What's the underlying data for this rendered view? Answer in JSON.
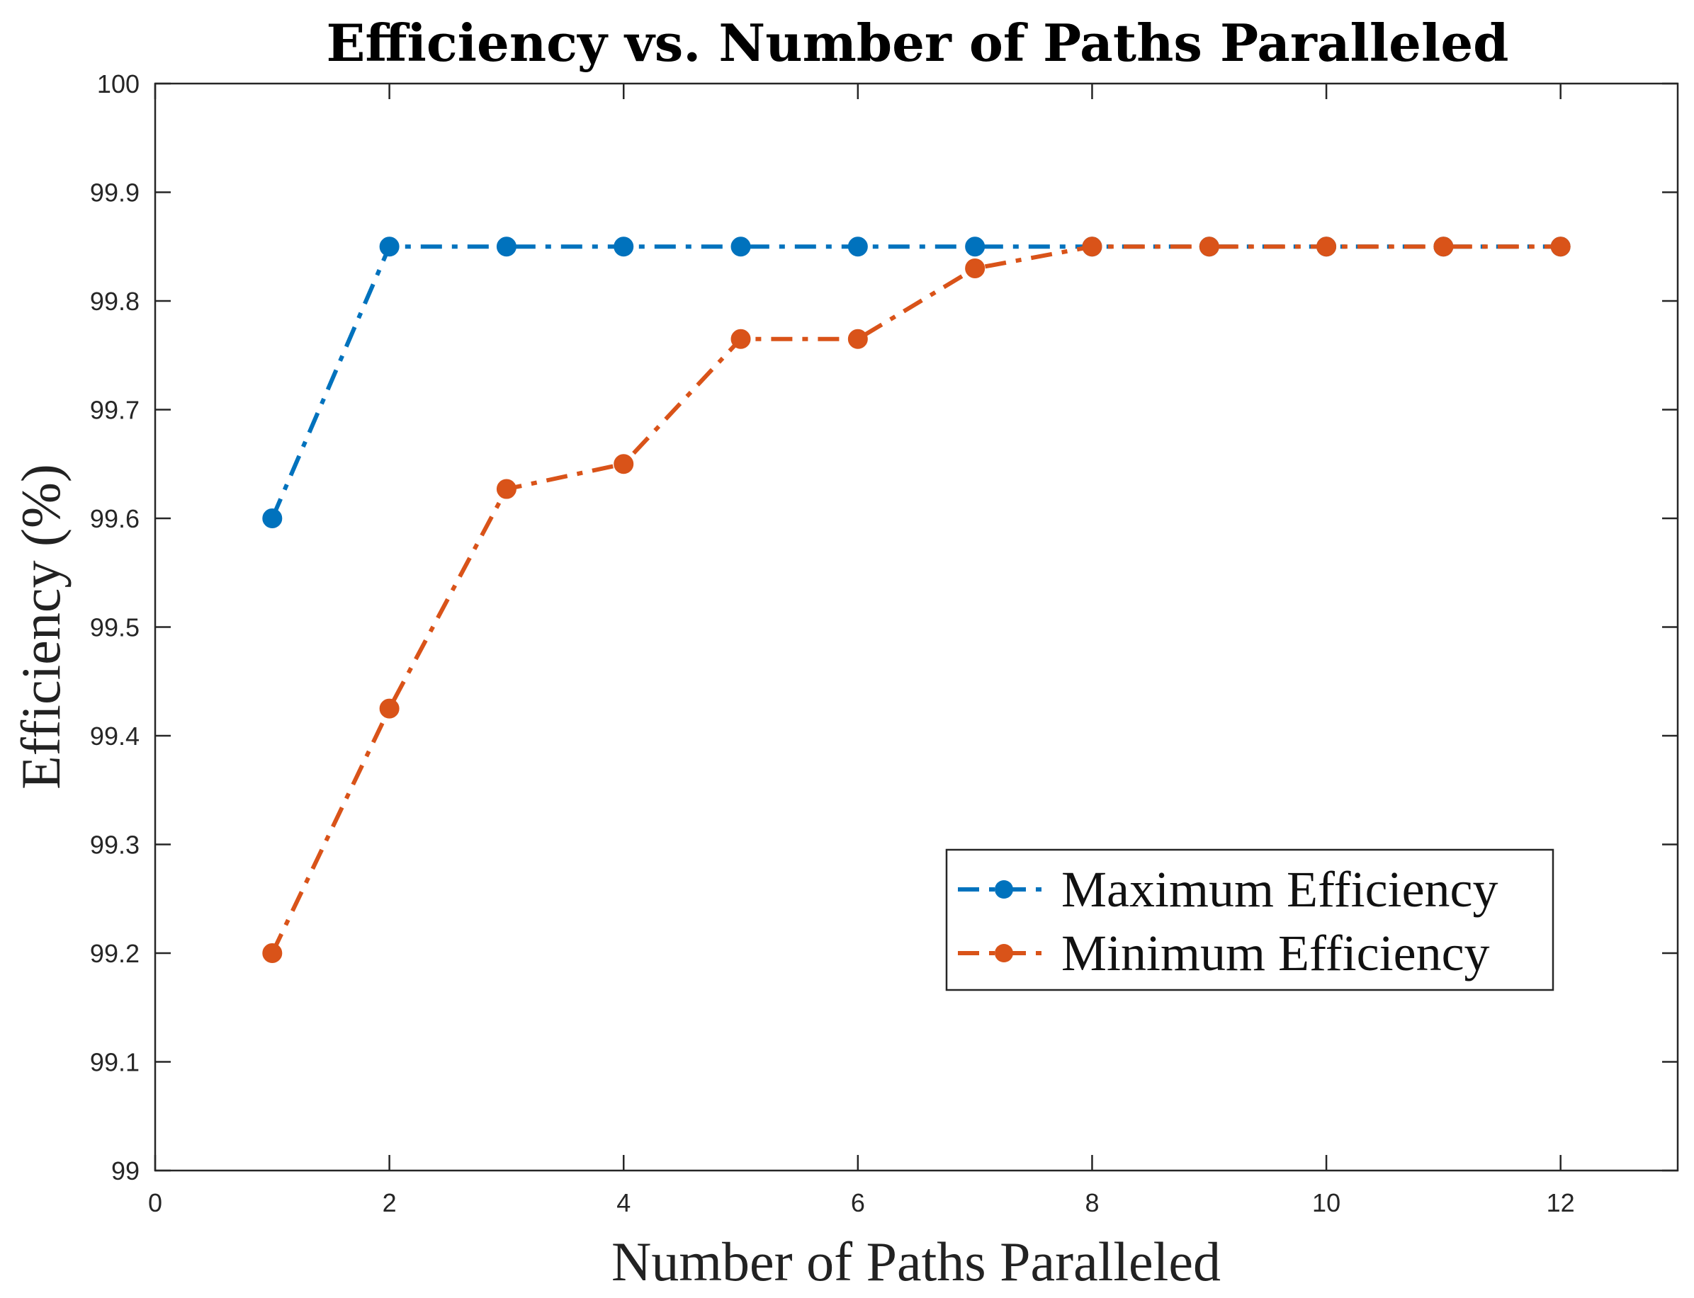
{
  "chart_data": {
    "type": "line",
    "title": "Efficiency vs. Number of Paths Paralleled",
    "xlabel": "Number of Paths Paralleled",
    "ylabel": "Efficiency (%)",
    "xlim": [
      0,
      13
    ],
    "ylim": [
      99,
      100
    ],
    "xticks": [
      0,
      2,
      4,
      6,
      8,
      10,
      12
    ],
    "xtick_labels": [
      "0",
      "2",
      "4",
      "6",
      "8",
      "10",
      "12"
    ],
    "yticks": [
      99,
      99.1,
      99.2,
      99.3,
      99.4,
      99.5,
      99.6,
      99.7,
      99.8,
      99.9,
      100
    ],
    "ytick_labels": [
      "99",
      "99.1",
      "99.2",
      "99.3",
      "99.4",
      "99.5",
      "99.6",
      "99.7",
      "99.8",
      "99.9",
      "100"
    ],
    "grid": false,
    "legend_position": "bottom-right",
    "series": [
      {
        "name": "Maximum Efficiency",
        "color": "#0072BD",
        "line_style": "dash-dot",
        "marker": "circle",
        "x": [
          1,
          2,
          3,
          4,
          5,
          6,
          7,
          8,
          9,
          10,
          11,
          12
        ],
        "y": [
          99.6,
          99.85,
          99.85,
          99.85,
          99.85,
          99.85,
          99.85,
          99.85,
          99.85,
          99.85,
          99.85,
          99.85
        ]
      },
      {
        "name": "Minimum Efficiency",
        "color": "#D95319",
        "line_style": "dash-dot",
        "marker": "circle",
        "x": [
          1,
          2,
          3,
          4,
          5,
          6,
          7,
          8,
          9,
          10,
          11,
          12
        ],
        "y": [
          99.2,
          99.425,
          99.627,
          99.65,
          99.765,
          99.765,
          99.83,
          99.85,
          99.85,
          99.85,
          99.85,
          99.85
        ]
      }
    ]
  }
}
